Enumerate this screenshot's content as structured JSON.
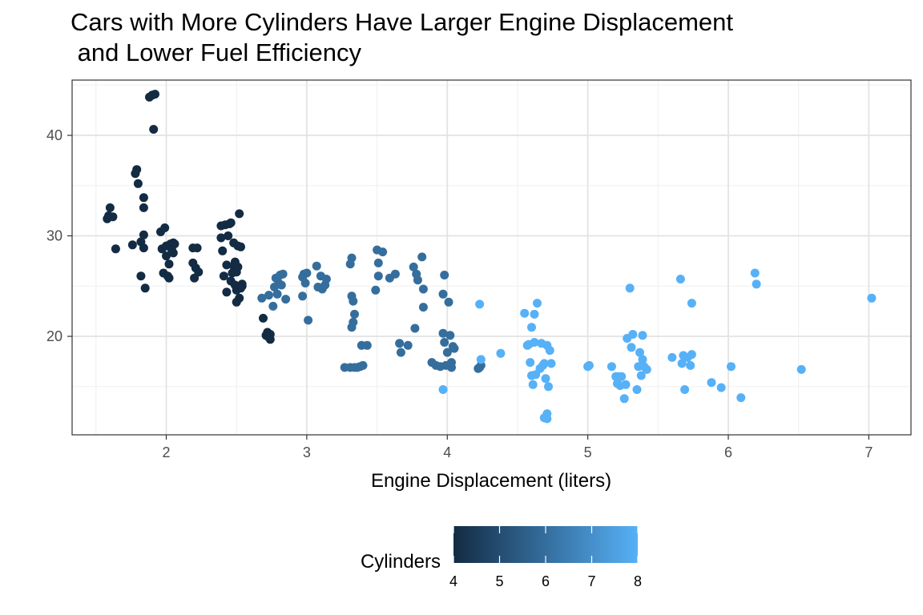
{
  "chart_data": {
    "type": "scatter",
    "title_lines": [
      "Cars with More Cylinders Have Larger Engine Displacement",
      " and Lower Fuel Efficiency"
    ],
    "xlabel": "Engine Displacement (liters)",
    "ylabel": "",
    "xlim": [
      1.33,
      7.3
    ],
    "ylim": [
      10.2,
      45.5
    ],
    "x_ticks": [
      2,
      3,
      4,
      5,
      6,
      7
    ],
    "y_ticks": [
      20,
      30,
      40
    ],
    "grid": true,
    "color_scale": {
      "title": "Cylinders",
      "min": 4,
      "max": 8,
      "ticks": [
        4,
        5,
        6,
        7,
        8
      ],
      "low_color": "#132b43",
      "high_color": "#56b1f7",
      "legend_position": "bottom"
    },
    "points": [
      [
        1.59,
        32.0,
        4
      ],
      [
        1.6,
        32.8,
        4
      ],
      [
        1.62,
        31.9,
        4
      ],
      [
        1.58,
        31.7,
        4
      ],
      [
        1.64,
        28.7,
        4
      ],
      [
        1.76,
        29.1,
        4
      ],
      [
        1.78,
        36.2,
        4
      ],
      [
        1.79,
        36.6,
        4
      ],
      [
        1.8,
        35.2,
        4
      ],
      [
        1.82,
        26.0,
        4
      ],
      [
        1.82,
        29.4,
        4
      ],
      [
        1.84,
        33.8,
        4
      ],
      [
        1.84,
        32.8,
        4
      ],
      [
        1.84,
        30.1,
        4
      ],
      [
        1.85,
        24.8,
        4
      ],
      [
        1.84,
        28.8,
        4
      ],
      [
        1.88,
        43.8,
        4
      ],
      [
        1.9,
        44.0,
        4
      ],
      [
        1.92,
        44.1,
        4
      ],
      [
        1.91,
        40.6,
        4
      ],
      [
        1.96,
        30.4,
        4
      ],
      [
        1.97,
        28.7,
        4
      ],
      [
        1.98,
        26.3,
        4
      ],
      [
        1.99,
        30.8,
        4
      ],
      [
        2.0,
        28.0,
        4
      ],
      [
        2.0,
        29.0,
        4
      ],
      [
        2.01,
        26.0,
        4
      ],
      [
        2.02,
        27.2,
        4
      ],
      [
        2.03,
        29.2,
        4
      ],
      [
        2.04,
        28.6,
        4
      ],
      [
        2.05,
        29.3,
        4
      ],
      [
        2.02,
        25.8,
        4
      ],
      [
        2.05,
        28.3,
        4
      ],
      [
        2.06,
        29.2,
        4
      ],
      [
        2.19,
        28.8,
        4
      ],
      [
        2.19,
        27.3,
        4
      ],
      [
        2.2,
        25.8,
        4
      ],
      [
        2.21,
        26.8,
        4
      ],
      [
        2.22,
        28.8,
        4
      ],
      [
        2.23,
        26.4,
        4
      ],
      [
        2.39,
        29.8,
        4
      ],
      [
        2.39,
        31.0,
        4
      ],
      [
        2.4,
        28.5,
        4
      ],
      [
        2.41,
        26.0,
        4
      ],
      [
        2.42,
        31.1,
        4
      ],
      [
        2.43,
        27.1,
        4
      ],
      [
        2.43,
        24.4,
        4
      ],
      [
        2.44,
        30.0,
        4
      ],
      [
        2.45,
        31.2,
        4
      ],
      [
        2.46,
        31.3,
        4
      ],
      [
        2.46,
        25.5,
        4
      ],
      [
        2.47,
        26.3,
        4
      ],
      [
        2.48,
        29.3,
        4
      ],
      [
        2.48,
        27.0,
        4
      ],
      [
        2.49,
        25.1,
        4
      ],
      [
        2.49,
        27.4,
        4
      ],
      [
        2.5,
        24.6,
        4
      ],
      [
        2.5,
        26.4,
        4
      ],
      [
        2.5,
        23.4,
        4
      ],
      [
        2.51,
        26.9,
        4
      ],
      [
        2.51,
        29.0,
        4
      ],
      [
        2.52,
        23.8,
        4
      ],
      [
        2.52,
        32.2,
        4
      ],
      [
        2.53,
        28.9,
        4
      ],
      [
        2.53,
        24.8,
        4
      ],
      [
        2.54,
        25.2,
        4
      ],
      [
        2.54,
        25.0,
        4
      ],
      [
        2.69,
        21.8,
        4
      ],
      [
        2.71,
        20.1,
        4
      ],
      [
        2.72,
        20.4,
        4
      ],
      [
        2.73,
        19.9,
        4
      ],
      [
        2.74,
        19.7,
        4
      ],
      [
        2.74,
        20.2,
        4
      ],
      [
        2.68,
        23.8,
        6
      ],
      [
        2.73,
        24.1,
        6
      ],
      [
        2.76,
        23.0,
        6
      ],
      [
        2.77,
        24.9,
        6
      ],
      [
        2.78,
        25.8,
        6
      ],
      [
        2.79,
        24.2,
        6
      ],
      [
        2.8,
        25.3,
        6
      ],
      [
        2.81,
        26.1,
        6
      ],
      [
        2.82,
        25.1,
        6
      ],
      [
        2.83,
        26.2,
        6
      ],
      [
        2.85,
        23.7,
        6
      ],
      [
        2.97,
        25.9,
        6
      ],
      [
        2.97,
        24.0,
        6
      ],
      [
        2.98,
        26.2,
        6
      ],
      [
        2.99,
        25.3,
        6
      ],
      [
        3.0,
        26.3,
        6
      ],
      [
        3.01,
        21.6,
        6
      ],
      [
        3.07,
        27.0,
        6
      ],
      [
        3.08,
        24.9,
        6
      ],
      [
        3.1,
        26.0,
        6
      ],
      [
        3.11,
        24.7,
        6
      ],
      [
        3.13,
        25.1,
        6
      ],
      [
        3.14,
        25.7,
        6
      ],
      [
        3.27,
        16.9,
        6
      ],
      [
        3.31,
        16.9,
        6
      ],
      [
        3.34,
        16.9,
        6
      ],
      [
        3.36,
        16.9,
        6
      ],
      [
        3.38,
        17.0,
        6
      ],
      [
        3.4,
        17.1,
        6
      ],
      [
        3.31,
        27.2,
        6
      ],
      [
        3.32,
        27.8,
        6
      ],
      [
        3.32,
        24.0,
        6
      ],
      [
        3.33,
        23.5,
        6
      ],
      [
        3.33,
        21.4,
        6
      ],
      [
        3.34,
        22.2,
        6
      ],
      [
        3.32,
        20.9,
        6
      ],
      [
        3.39,
        19.1,
        6
      ],
      [
        3.43,
        19.1,
        6
      ],
      [
        3.49,
        24.6,
        6
      ],
      [
        3.5,
        28.6,
        6
      ],
      [
        3.51,
        27.3,
        6
      ],
      [
        3.51,
        26.0,
        6
      ],
      [
        3.54,
        28.4,
        6
      ],
      [
        3.59,
        25.8,
        6
      ],
      [
        3.63,
        26.2,
        6
      ],
      [
        3.66,
        19.3,
        6
      ],
      [
        3.67,
        18.4,
        6
      ],
      [
        3.72,
        19.1,
        6
      ],
      [
        3.76,
        26.9,
        6
      ],
      [
        3.77,
        20.8,
        6
      ],
      [
        3.78,
        26.2,
        6
      ],
      [
        3.79,
        25.6,
        6
      ],
      [
        3.82,
        27.9,
        6
      ],
      [
        3.83,
        24.7,
        6
      ],
      [
        3.83,
        22.9,
        6
      ],
      [
        3.89,
        17.4,
        6
      ],
      [
        3.92,
        17.1,
        6
      ],
      [
        3.95,
        17.0,
        6
      ],
      [
        3.97,
        24.2,
        6
      ],
      [
        3.97,
        20.3,
        6
      ],
      [
        3.98,
        26.1,
        6
      ],
      [
        3.98,
        19.4,
        6
      ],
      [
        3.99,
        17.1,
        6
      ],
      [
        4.0,
        18.4,
        6
      ],
      [
        4.01,
        23.4,
        6
      ],
      [
        4.02,
        20.1,
        6
      ],
      [
        4.03,
        17.4,
        6
      ],
      [
        4.03,
        16.9,
        6
      ],
      [
        4.04,
        19.0,
        6
      ],
      [
        4.05,
        18.8,
        6
      ],
      [
        4.22,
        16.8,
        6
      ],
      [
        4.23,
        16.9,
        6
      ],
      [
        4.24,
        17.1,
        6
      ],
      [
        3.97,
        14.7,
        8
      ],
      [
        4.23,
        23.2,
        8
      ],
      [
        4.24,
        17.7,
        8
      ],
      [
        4.38,
        18.3,
        8
      ],
      [
        4.55,
        22.3,
        8
      ],
      [
        4.57,
        19.1,
        8
      ],
      [
        4.58,
        19.2,
        8
      ],
      [
        4.59,
        17.4,
        8
      ],
      [
        4.6,
        20.9,
        8
      ],
      [
        4.6,
        16.1,
        8
      ],
      [
        4.61,
        15.2,
        8
      ],
      [
        4.62,
        22.2,
        8
      ],
      [
        4.62,
        19.4,
        8
      ],
      [
        4.63,
        16.2,
        8
      ],
      [
        4.64,
        23.3,
        8
      ],
      [
        4.66,
        16.8,
        8
      ],
      [
        4.67,
        19.3,
        8
      ],
      [
        4.68,
        17.1,
        8
      ],
      [
        4.69,
        17.3,
        8
      ],
      [
        4.69,
        11.9,
        8
      ],
      [
        4.7,
        15.8,
        8
      ],
      [
        4.71,
        19.1,
        8
      ],
      [
        4.71,
        12.3,
        8
      ],
      [
        4.72,
        15.0,
        8
      ],
      [
        4.73,
        18.6,
        8
      ],
      [
        4.74,
        17.3,
        8
      ],
      [
        4.71,
        11.8,
        8
      ],
      [
        5.0,
        17.0,
        8
      ],
      [
        5.01,
        17.1,
        8
      ],
      [
        5.17,
        17.0,
        8
      ],
      [
        5.2,
        16.0,
        8
      ],
      [
        5.21,
        15.3,
        8
      ],
      [
        5.22,
        16.0,
        8
      ],
      [
        5.23,
        15.1,
        8
      ],
      [
        5.24,
        16.0,
        8
      ],
      [
        5.26,
        13.8,
        8
      ],
      [
        5.27,
        15.2,
        8
      ],
      [
        5.28,
        19.8,
        8
      ],
      [
        5.3,
        24.8,
        8
      ],
      [
        5.31,
        18.9,
        8
      ],
      [
        5.32,
        20.2,
        8
      ],
      [
        5.35,
        14.7,
        8
      ],
      [
        5.36,
        17.0,
        8
      ],
      [
        5.37,
        18.4,
        8
      ],
      [
        5.38,
        16.1,
        8
      ],
      [
        5.39,
        20.1,
        8
      ],
      [
        5.39,
        17.7,
        8
      ],
      [
        5.4,
        17.0,
        8
      ],
      [
        5.42,
        16.7,
        8
      ],
      [
        5.6,
        17.9,
        8
      ],
      [
        5.66,
        25.7,
        8
      ],
      [
        5.67,
        17.3,
        8
      ],
      [
        5.68,
        18.1,
        8
      ],
      [
        5.69,
        14.7,
        8
      ],
      [
        5.71,
        17.9,
        8
      ],
      [
        5.73,
        17.1,
        8
      ],
      [
        5.74,
        23.3,
        8
      ],
      [
        5.74,
        18.2,
        8
      ],
      [
        5.88,
        15.4,
        8
      ],
      [
        5.95,
        14.9,
        8
      ],
      [
        6.02,
        17.0,
        8
      ],
      [
        6.09,
        13.9,
        8
      ],
      [
        6.19,
        26.3,
        8
      ],
      [
        6.2,
        25.2,
        8
      ],
      [
        6.52,
        16.7,
        8
      ],
      [
        7.02,
        23.8,
        8
      ]
    ]
  }
}
